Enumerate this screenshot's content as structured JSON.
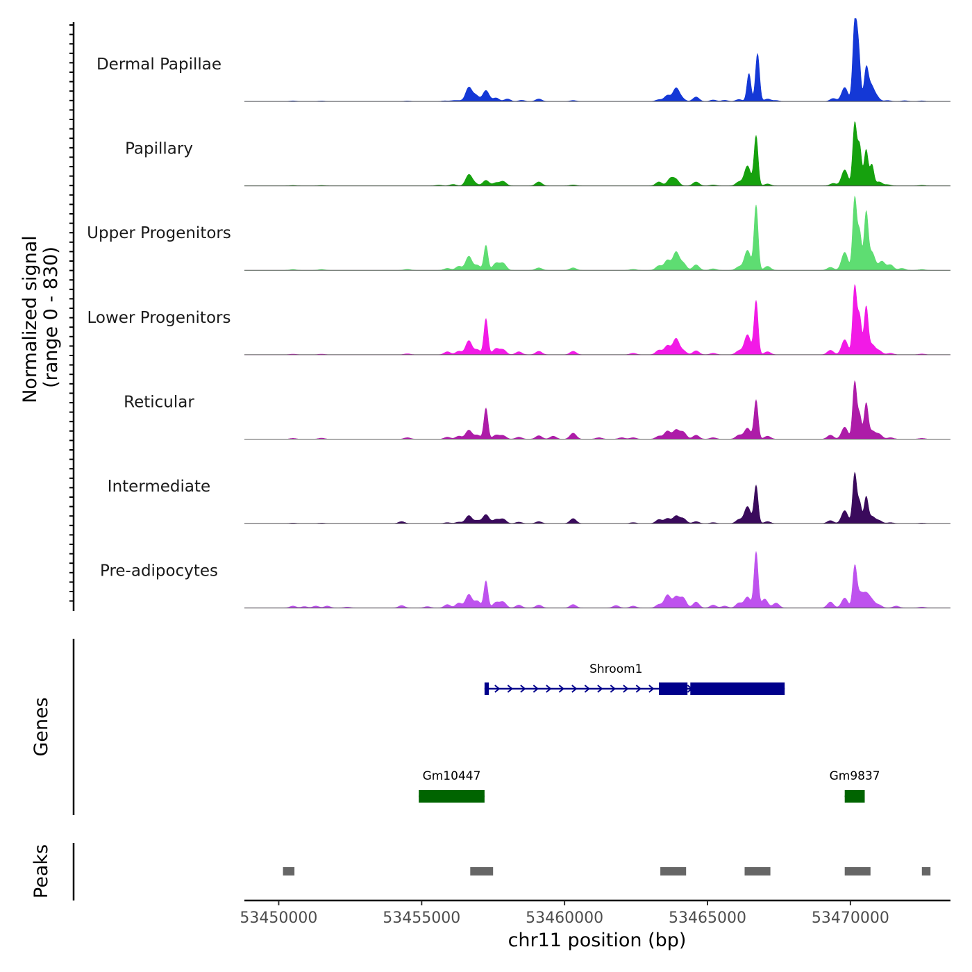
{
  "chart_data": {
    "type": "area",
    "title": "",
    "signal_axis_label_line1": "Normalized signal",
    "signal_axis_label_line2": "(range 0 - 830)",
    "signal_range": [
      0,
      830
    ],
    "genes_label": "Genes",
    "peaks_label": "Peaks",
    "xlabel": "chr11 position (bp)",
    "xlim": [
      53448800,
      53473500
    ],
    "x_ticks": [
      53450000,
      53455000,
      53460000,
      53465000,
      53470000
    ],
    "x_tick_labels": [
      "53450000",
      "53455000",
      "53460000",
      "53465000",
      "53470000"
    ],
    "tracks": [
      {
        "name": "Dermal Papillae",
        "color": "#1438d6",
        "peaks": [
          [
            53450500,
            6
          ],
          [
            53451500,
            5
          ],
          [
            53454500,
            5
          ],
          [
            53455800,
            6
          ],
          [
            53456100,
            8
          ],
          [
            53456300,
            8
          ],
          [
            53456650,
            140
          ],
          [
            53456900,
            60
          ],
          [
            53457250,
            110
          ],
          [
            53457600,
            35
          ],
          [
            53458000,
            25
          ],
          [
            53458500,
            12
          ],
          [
            53459100,
            25
          ],
          [
            53460300,
            10
          ],
          [
            53463300,
            18
          ],
          [
            53463600,
            60
          ],
          [
            53463900,
            130
          ],
          [
            53464100,
            30
          ],
          [
            53464600,
            45
          ],
          [
            53465200,
            15
          ],
          [
            53465600,
            12
          ],
          [
            53466100,
            20
          ],
          [
            53466450,
            280
          ],
          [
            53466750,
            480
          ],
          [
            53467100,
            25
          ],
          [
            53467400,
            10
          ],
          [
            53469400,
            30
          ],
          [
            53469800,
            140
          ],
          [
            53470150,
            760
          ],
          [
            53470280,
            500
          ],
          [
            53470550,
            290
          ],
          [
            53470700,
            160
          ],
          [
            53470900,
            50
          ],
          [
            53471300,
            10
          ],
          [
            53471900,
            8
          ],
          [
            53472500,
            6
          ]
        ]
      },
      {
        "name": "Papillary",
        "color": "#16a10e",
        "peaks": [
          [
            53450500,
            4
          ],
          [
            53451500,
            4
          ],
          [
            53455600,
            8
          ],
          [
            53456100,
            15
          ],
          [
            53456650,
            110
          ],
          [
            53456850,
            25
          ],
          [
            53457250,
            55
          ],
          [
            53457600,
            30
          ],
          [
            53457850,
            45
          ],
          [
            53459100,
            40
          ],
          [
            53460300,
            10
          ],
          [
            53463300,
            40
          ],
          [
            53463700,
            70
          ],
          [
            53463900,
            60
          ],
          [
            53464600,
            40
          ],
          [
            53465200,
            10
          ],
          [
            53466100,
            40
          ],
          [
            53466400,
            200
          ],
          [
            53466700,
            500
          ],
          [
            53467100,
            20
          ],
          [
            53469400,
            25
          ],
          [
            53469800,
            160
          ],
          [
            53470150,
            620
          ],
          [
            53470320,
            400
          ],
          [
            53470550,
            360
          ],
          [
            53470750,
            210
          ],
          [
            53471000,
            40
          ],
          [
            53471300,
            12
          ],
          [
            53472500,
            6
          ]
        ]
      },
      {
        "name": "Upper Progenitors",
        "color": "#5edd72",
        "peaks": [
          [
            53450500,
            8
          ],
          [
            53451500,
            8
          ],
          [
            53454500,
            10
          ],
          [
            53455900,
            20
          ],
          [
            53456300,
            40
          ],
          [
            53456650,
            140
          ],
          [
            53456950,
            50
          ],
          [
            53457250,
            250
          ],
          [
            53457600,
            70
          ],
          [
            53457850,
            70
          ],
          [
            53459100,
            25
          ],
          [
            53460300,
            25
          ],
          [
            53462400,
            10
          ],
          [
            53463300,
            45
          ],
          [
            53463600,
            100
          ],
          [
            53463900,
            180
          ],
          [
            53464150,
            70
          ],
          [
            53464600,
            55
          ],
          [
            53465200,
            15
          ],
          [
            53466100,
            35
          ],
          [
            53466400,
            200
          ],
          [
            53466700,
            650
          ],
          [
            53467100,
            40
          ],
          [
            53469300,
            30
          ],
          [
            53469800,
            180
          ],
          [
            53470150,
            720
          ],
          [
            53470320,
            380
          ],
          [
            53470550,
            560
          ],
          [
            53470750,
            180
          ],
          [
            53471100,
            90
          ],
          [
            53471400,
            55
          ],
          [
            53471800,
            20
          ],
          [
            53472500,
            8
          ]
        ]
      },
      {
        "name": "Lower Progenitors",
        "color": "#f21ae6",
        "peaks": [
          [
            53450500,
            6
          ],
          [
            53451500,
            6
          ],
          [
            53454500,
            10
          ],
          [
            53455900,
            30
          ],
          [
            53456300,
            35
          ],
          [
            53456650,
            140
          ],
          [
            53456950,
            50
          ],
          [
            53457250,
            360
          ],
          [
            53457600,
            60
          ],
          [
            53457850,
            50
          ],
          [
            53458400,
            30
          ],
          [
            53459100,
            35
          ],
          [
            53460300,
            35
          ],
          [
            53462400,
            15
          ],
          [
            53463300,
            45
          ],
          [
            53463600,
            90
          ],
          [
            53463900,
            160
          ],
          [
            53464150,
            40
          ],
          [
            53464600,
            40
          ],
          [
            53465200,
            15
          ],
          [
            53466100,
            40
          ],
          [
            53466400,
            200
          ],
          [
            53466700,
            540
          ],
          [
            53467100,
            30
          ],
          [
            53469300,
            45
          ],
          [
            53469800,
            150
          ],
          [
            53470150,
            680
          ],
          [
            53470320,
            380
          ],
          [
            53470550,
            470
          ],
          [
            53470750,
            100
          ],
          [
            53471000,
            40
          ],
          [
            53471400,
            15
          ],
          [
            53472500,
            8
          ]
        ]
      },
      {
        "name": "Reticular",
        "color": "#ad1ca8",
        "peaks": [
          [
            53450500,
            8
          ],
          [
            53451500,
            10
          ],
          [
            53454500,
            15
          ],
          [
            53455900,
            20
          ],
          [
            53456300,
            30
          ],
          [
            53456650,
            90
          ],
          [
            53456950,
            40
          ],
          [
            53457250,
            310
          ],
          [
            53457600,
            40
          ],
          [
            53457850,
            35
          ],
          [
            53458400,
            20
          ],
          [
            53459100,
            35
          ],
          [
            53459600,
            30
          ],
          [
            53460300,
            60
          ],
          [
            53461200,
            15
          ],
          [
            53462000,
            15
          ],
          [
            53462400,
            15
          ],
          [
            53463300,
            30
          ],
          [
            53463600,
            80
          ],
          [
            53463900,
            90
          ],
          [
            53464150,
            70
          ],
          [
            53464600,
            40
          ],
          [
            53465200,
            15
          ],
          [
            53466100,
            40
          ],
          [
            53466400,
            110
          ],
          [
            53466700,
            390
          ],
          [
            53467100,
            30
          ],
          [
            53469300,
            40
          ],
          [
            53469800,
            120
          ],
          [
            53470150,
            570
          ],
          [
            53470320,
            240
          ],
          [
            53470550,
            350
          ],
          [
            53470750,
            80
          ],
          [
            53471000,
            50
          ],
          [
            53471400,
            15
          ],
          [
            53472500,
            8
          ]
        ]
      },
      {
        "name": "Intermediate",
        "color": "#3a0a5c",
        "peaks": [
          [
            53450500,
            5
          ],
          [
            53451500,
            5
          ],
          [
            53454300,
            20
          ],
          [
            53455900,
            10
          ],
          [
            53456300,
            15
          ],
          [
            53456650,
            80
          ],
          [
            53456950,
            30
          ],
          [
            53457250,
            90
          ],
          [
            53457600,
            40
          ],
          [
            53457850,
            45
          ],
          [
            53458400,
            15
          ],
          [
            53459100,
            20
          ],
          [
            53460300,
            50
          ],
          [
            53462400,
            10
          ],
          [
            53463300,
            40
          ],
          [
            53463600,
            50
          ],
          [
            53463900,
            75
          ],
          [
            53464150,
            50
          ],
          [
            53464600,
            20
          ],
          [
            53465200,
            10
          ],
          [
            53466100,
            40
          ],
          [
            53466400,
            170
          ],
          [
            53466700,
            380
          ],
          [
            53467100,
            20
          ],
          [
            53469300,
            30
          ],
          [
            53469800,
            130
          ],
          [
            53470150,
            500
          ],
          [
            53470320,
            210
          ],
          [
            53470550,
            260
          ],
          [
            53470750,
            70
          ],
          [
            53471000,
            30
          ],
          [
            53471400,
            10
          ],
          [
            53472500,
            5
          ]
        ]
      },
      {
        "name": "Pre-adipocytes",
        "color": "#be52ee",
        "peaks": [
          [
            53450500,
            20
          ],
          [
            53450900,
            15
          ],
          [
            53451300,
            20
          ],
          [
            53451700,
            20
          ],
          [
            53452400,
            10
          ],
          [
            53454300,
            25
          ],
          [
            53455200,
            15
          ],
          [
            53455900,
            35
          ],
          [
            53456300,
            50
          ],
          [
            53456650,
            135
          ],
          [
            53456950,
            70
          ],
          [
            53457250,
            270
          ],
          [
            53457600,
            55
          ],
          [
            53457850,
            60
          ],
          [
            53458400,
            30
          ],
          [
            53459100,
            30
          ],
          [
            53460300,
            35
          ],
          [
            53461800,
            25
          ],
          [
            53462400,
            20
          ],
          [
            53463300,
            35
          ],
          [
            53463600,
            130
          ],
          [
            53463900,
            110
          ],
          [
            53464150,
            100
          ],
          [
            53464600,
            60
          ],
          [
            53465200,
            30
          ],
          [
            53465600,
            20
          ],
          [
            53466100,
            50
          ],
          [
            53466400,
            110
          ],
          [
            53466700,
            560
          ],
          [
            53467000,
            90
          ],
          [
            53467400,
            50
          ],
          [
            53469300,
            60
          ],
          [
            53469800,
            100
          ],
          [
            53470150,
            390
          ],
          [
            53470320,
            140
          ],
          [
            53470550,
            130
          ],
          [
            53470750,
            70
          ],
          [
            53471000,
            30
          ],
          [
            53471600,
            20
          ],
          [
            53472500,
            10
          ]
        ]
      }
    ],
    "genes": [
      {
        "name": "Shroom1",
        "color": "#00008b",
        "start": 53457200,
        "end": 53467700,
        "strand": "+",
        "row": 0,
        "exons": [
          [
            53457200,
            53457350
          ],
          [
            53463300,
            53464300
          ],
          [
            53464400,
            53467700
          ]
        ]
      },
      {
        "name": "Gm10447",
        "color": "#006400",
        "start": 53454900,
        "end": 53457200,
        "strand": "-",
        "row": 1,
        "exons": [
          [
            53454900,
            53457200
          ]
        ]
      },
      {
        "name": "Gm9837",
        "color": "#006400",
        "start": 53469800,
        "end": 53470500,
        "strand": "+",
        "row": 1,
        "exons": [
          [
            53469800,
            53470500
          ]
        ]
      }
    ],
    "peak_regions": [
      [
        53450150,
        53450550
      ],
      [
        53456700,
        53457500
      ],
      [
        53463350,
        53464250
      ],
      [
        53466300,
        53467200
      ],
      [
        53469800,
        53470700
      ],
      [
        53472500,
        53472800
      ]
    ],
    "peak_color": "#666666"
  }
}
